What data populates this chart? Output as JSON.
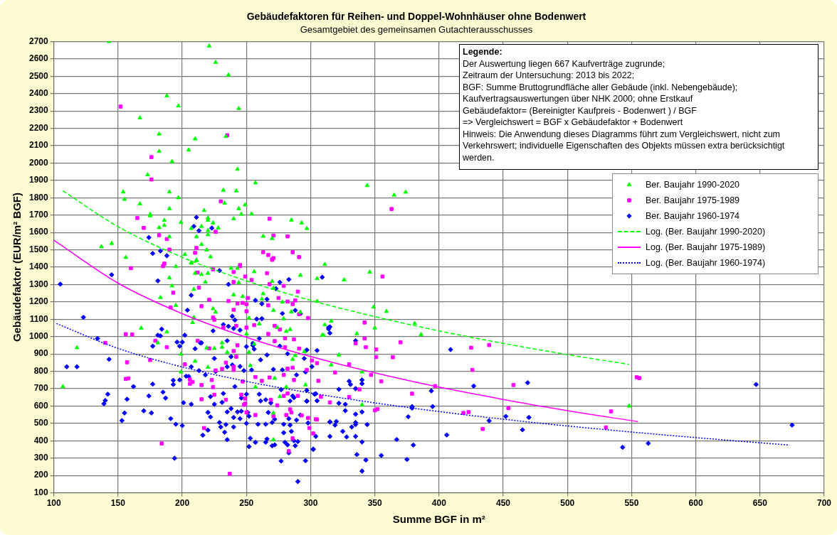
{
  "chart_data": {
    "type": "scatter",
    "title": "Gebäudefaktoren für Reihen- und Doppel-Wohnhäuser ohne Bodenwert",
    "subtitle": "Gesamtgebiet des gemeinsamen Gutachterausschusses",
    "xlabel": "Summe BGF in m²",
    "ylabel": "Gebäudefaktor (EUR/m² BGF)",
    "xlim": [
      100,
      700
    ],
    "xticks": [
      100,
      150,
      200,
      250,
      300,
      350,
      400,
      450,
      500,
      550,
      600,
      650,
      700
    ],
    "ylim": [
      100,
      2700
    ],
    "yticks": [
      100,
      200,
      300,
      400,
      500,
      600,
      700,
      800,
      900,
      1000,
      1100,
      1200,
      1300,
      1400,
      1500,
      1600,
      1700,
      1800,
      1900,
      2000,
      2100,
      2200,
      2300,
      2400,
      2500,
      2600,
      2700
    ],
    "grid": true,
    "legend": "right",
    "annotations": [
      "Legende:",
      "Der Auswertung liegen 667 Kaufverträge zugrunde;",
      "Zeitraum der Untersuchung: 2013 bis 2022;",
      "BGF: Summe Bruttogrundfläche aller Gebäude (inkl. Nebengebäude);",
      "Kaufvertragsauswertungen über NHK 2000; ohne Erstkauf",
      "Gebäudefaktor= (Bereinigter Kaufpreis - Bodenwert ) / BGF",
      "=> Vergleichswert = BGF x Gebäudefaktor + Bodenwert",
      "Hinweis: Die Anwendung dieses Diagramms führt zum Vergleichswert, nicht zum Verkehrswert; individuelle Eigenschaften des Objekts müssen extra berücksichtigt werden."
    ],
    "series": [
      {
        "name": "Ber. Baujahr 1990-2020",
        "color": "#00ff00",
        "marker": "triangle",
        "x": [
          143,
          221,
          226,
          236,
          188,
          197,
          244,
          167,
          182,
          210,
          234,
          182,
          205,
          192,
          243,
          173,
          257,
          154,
          155,
          190,
          197,
          232,
          242,
          167,
          233,
          190,
          217,
          244,
          249,
          175,
          175,
          199,
          186,
          186,
          182,
          207,
          215,
          220,
          220,
          224,
          228,
          220,
          220,
          211,
          190,
          240,
          246,
          254,
          285,
          293,
          297,
          263,
          270,
          137,
          145,
          215,
          219,
          202,
          222,
          156,
          207,
          211,
          311,
          344,
          365,
          374,
          305,
          326,
          346,
          305,
          349,
          359,
          350,
          381,
          386,
          311,
          316,
          310,
          336,
          295,
          322,
          316,
          340,
          296,
          340,
          548,
          195,
          207,
          211,
          210,
          215,
          220,
          218,
          238,
          243,
          244,
          256,
          292,
          190,
          192,
          183,
          195,
          209,
          240,
          247,
          262,
          263,
          270,
          271,
          271,
          278,
          285,
          292,
          224,
          226,
          209,
          208,
          252,
          260,
          279,
          284,
          281,
          274,
          309,
          168,
          188,
          181,
          118,
          219,
          225,
          231,
          231,
          250,
          235,
          256,
          199,
          210,
          220,
          199,
          253,
          288,
          286,
          252,
          272,
          257,
          276,
          281,
          107,
          271,
          271
        ],
        "values": [
          2700,
          2674,
          2580,
          2507,
          2387,
          2329,
          2314,
          2260,
          2167,
          2139,
          2153,
          2067,
          2075,
          2008,
          1964,
          1932,
          1886,
          1833,
          1791,
          1833,
          1800,
          1843,
          1839,
          1765,
          1769,
          1737,
          1727,
          1737,
          1759,
          1705,
          1696,
          1658,
          1670,
          1641,
          1628,
          1623,
          1635,
          1683,
          1670,
          1655,
          1626,
          1611,
          1587,
          1575,
          1575,
          1679,
          1705,
          1706,
          1671,
          1655,
          1623,
          1578,
          1565,
          1518,
          1537,
          1531,
          1499,
          1473,
          1460,
          1456,
          1426,
          1441,
          1416,
          1870,
          1815,
          1832,
          1334,
          1327,
          1372,
          1203,
          1170,
          1145,
          1050,
          1076,
          1012,
          1068,
          1089,
          1008,
          1017,
          913,
          894,
          837,
          796,
          722,
          607,
          600,
          1404,
          1423,
          1438,
          1365,
          1358,
          1365,
          1314,
          1394,
          1394,
          1311,
          1374,
          1353,
          1339,
          1292,
          1225,
          1180,
          1272,
          1241,
          1231,
          1216,
          1247,
          1318,
          1279,
          1151,
          1199,
          1143,
          1141,
          1161,
          1141,
          1110,
          1081,
          1107,
          1073,
          1103,
          1041,
          1030,
          1052,
          1008,
          1049,
          1027,
          964,
          936,
          935,
          932,
          939,
          964,
          1015,
          910,
          957,
          899,
          858,
          823,
          796,
          833,
          891,
          869,
          910,
          760,
          709,
          654,
          709,
          712,
          406,
          560
        ]
      },
      {
        "name": "Ber. Baujahr 1975-1989",
        "color": "#ff00ff",
        "marker": "square",
        "x": [
          152,
          235,
          176,
          176,
          230,
          165,
          170,
          182,
          188,
          190,
          186,
          226,
          211,
          210,
          268,
          271,
          282,
          263,
          267,
          271,
          270,
          286,
          291,
          245,
          160,
          185,
          186,
          212,
          224,
          240,
          245,
          266,
          270,
          193,
          213,
          215,
          221,
          191,
          240,
          249,
          254,
          268,
          279,
          290,
          236,
          240,
          243,
          247,
          250,
          251,
          250,
          267,
          275,
          282,
          286,
          288,
          291,
          298,
          224,
          225,
          232,
          242,
          250,
          256,
          267,
          272,
          276,
          280,
          287,
          156,
          161,
          140,
          179,
          188,
          212,
          221,
          240,
          243,
          242,
          272,
          280,
          291,
          157,
          175,
          156,
          158,
          202,
          206,
          208,
          206,
          215,
          223,
          226,
          231,
          234,
          240,
          240,
          247,
          257,
          262,
          268,
          279,
          282,
          286,
          287,
          297,
          301,
          305,
          306,
          224,
          225,
          215,
          234,
          246,
          249,
          249,
          248,
          250,
          257,
          269,
          274,
          279,
          282,
          284,
          285,
          281,
          290,
          293,
          298,
          304,
          299,
          302,
          315,
          308,
          271,
          286,
          283,
          184,
          237,
          217,
          363,
          356,
          342,
          342,
          335,
          343,
          370,
          351,
          351,
          364,
          330,
          319,
          347,
          355,
          338,
          379,
          397,
          425,
          439,
          426,
          458,
          454,
          419,
          423,
          434,
          330,
          350,
          352,
          305,
          534,
          530,
          554,
          556
        ],
        "values": [
          2325,
          2160,
          2034,
          1905,
          1779,
          1683,
          1626,
          1584,
          1562,
          1501,
          1419,
          1604,
          1511,
          1483,
          1679,
          1582,
          1577,
          1486,
          1470,
          1452,
          1442,
          1486,
          1458,
          1412,
          1394,
          1406,
          1420,
          1369,
          1387,
          1372,
          1406,
          1365,
          1445,
          1253,
          1282,
          1175,
          1212,
          1168,
          1314,
          1346,
          1326,
          1302,
          1292,
          1259,
          1205,
          1154,
          1190,
          1194,
          1186,
          1222,
          1146,
          1180,
          1222,
          1202,
          1187,
          1208,
          1129,
          1107,
          1110,
          1097,
          1052,
          1062,
          1052,
          1066,
          1015,
          1062,
          1041,
          990,
          984,
          1014,
          1012,
          964,
          976,
          939,
          976,
          932,
          917,
          950,
          884,
          974,
          939,
          931,
          852,
          865,
          756,
          759,
          840,
          753,
          738,
          728,
          721,
          750,
          805,
          814,
          850,
          826,
          808,
          741,
          767,
          745,
          764,
          779,
          815,
          821,
          750,
          808,
          862,
          847,
          745,
          709,
          665,
          639,
          636,
          665,
          614,
          643,
          607,
          563,
          548,
          636,
          604,
          658,
          672,
          581,
          563,
          548,
          658,
          546,
          531,
          524,
          473,
          442,
          621,
          653,
          541,
          414,
          340,
          384,
          210,
          473,
          1735,
          1346,
          1081,
          989,
          961,
          939,
          967,
          926,
          882,
          881,
          840,
          793,
          779,
          742,
          696,
          671,
          715,
          936,
          951,
          808,
          721,
          588,
          560,
          565,
          468,
          652,
          575,
          582,
          522,
          569,
          476,
          766,
          761
        ]
      },
      {
        "name": "Ber. Baujahr 1960-1974",
        "color": "#0000ff",
        "marker": "diamond",
        "x": [
          211,
          209,
          213,
          223,
          174,
          177,
          183,
          188,
          105,
          145,
          123,
          181,
          236,
          229,
          273,
          276,
          283,
          309,
          207,
          204,
          257,
          266,
          262,
          278,
          288,
          292,
          239,
          241,
          232,
          236,
          240,
          245,
          224,
          202,
          184,
          181,
          183,
          258,
          262,
          314,
          134,
          177,
          196,
          200,
          198,
          210,
          214,
          215,
          235,
          255,
          255,
          260,
          276,
          282,
          297,
          305,
          143,
          110,
          118,
          225,
          238,
          250,
          256,
          266,
          261,
          226,
          235,
          239,
          245,
          248,
          254,
          271,
          278,
          289,
          295,
          296,
          207,
          213,
          218,
          203,
          205,
          198,
          193,
          193,
          177,
          162,
          142,
          140,
          139,
          157,
          174,
          185,
          187,
          201,
          207,
          222,
          225,
          232,
          231,
          241,
          246,
          250,
          260,
          261,
          265,
          269,
          277,
          286,
          287,
          284,
          297,
          297,
          303,
          155,
          153,
          170,
          176,
          191,
          195,
          200,
          220,
          222,
          229,
          230,
          234,
          235,
          238,
          240,
          243,
          246,
          245,
          251,
          252,
          250,
          259,
          265,
          267,
          270,
          272,
          279,
          283,
          284,
          289,
          292,
          298,
          315,
          216,
          220,
          233,
          235,
          240,
          253,
          252,
          257,
          265,
          266,
          270,
          272,
          279,
          280,
          282,
          283,
          285,
          287,
          288,
          290,
          302,
          304,
          277,
          296,
          290,
          194,
          315,
          314,
          315,
          335,
          301,
          322,
          330,
          331,
          335,
          340,
          340,
          304,
          305,
          297,
          322,
          327,
          327,
          335,
          340,
          315,
          319,
          320,
          332,
          335,
          335,
          344,
          325,
          315,
          328,
          335,
          340,
          302,
          336,
          343,
          340,
          355,
          367,
          380,
          375,
          376,
          379,
          379,
          394,
          395,
          406,
          409,
          427,
          439,
          452,
          469,
          470,
          465,
          543,
          563,
          647,
          675
        ],
        "values": [
          1687,
          1635,
          1610,
          1625,
          1571,
          1479,
          1493,
          1466,
          1302,
          1356,
          1111,
          1321,
          1301,
          1380,
          1276,
          1313,
          1329,
          1342,
          1238,
          1152,
          1209,
          1215,
          1189,
          1133,
          1151,
          1132,
          1117,
          1095,
          1069,
          1059,
          1047,
          1037,
          1033,
          1008,
          1043,
          1008,
          1004,
          1101,
          1103,
          1052,
          989,
          945,
          968,
          968,
          945,
          930,
          964,
          964,
          976,
          961,
          949,
          989,
          945,
          901,
          923,
          920,
          869,
          826,
          826,
          874,
          884,
          942,
          928,
          894,
          866,
          799,
          826,
          837,
          828,
          804,
          808,
          811,
          808,
          779,
          874,
          796,
          826,
          804,
          779,
          772,
          770,
          750,
          748,
          724,
          726,
          712,
          668,
          632,
          613,
          639,
          658,
          680,
          646,
          619,
          610,
          654,
          610,
          672,
          621,
          712,
          646,
          668,
          668,
          629,
          636,
          618,
          694,
          658,
          648,
          629,
          690,
          629,
          668,
          560,
          516,
          572,
          560,
          527,
          495,
          487,
          563,
          537,
          505,
          479,
          493,
          566,
          585,
          534,
          566,
          570,
          527,
          563,
          541,
          500,
          495,
          495,
          563,
          505,
          524,
          495,
          527,
          490,
          519,
          548,
          502,
          508,
          432,
          461,
          449,
          406,
          479,
          414,
          366,
          391,
          391,
          410,
          371,
          376,
          446,
          391,
          376,
          330,
          454,
          400,
          371,
          395,
          352,
          425,
          283,
          285,
          165,
          299,
          1056,
          1044,
          1020,
          976,
          827,
          696,
          743,
          724,
          700,
          750,
          729,
          671,
          630,
          627,
          616,
          610,
          573,
          553,
          566,
          509,
          490,
          511,
          479,
          505,
          493,
          493,
          454,
          425,
          422,
          425,
          393,
          350,
          320,
          289,
          225,
          315,
          407,
          375,
          292,
          538,
          588,
          597,
          687,
          597,
          433,
          925,
          715,
          515,
          540,
          734,
          534,
          463,
          362,
          385,
          724,
          490
        ]
      },
      {
        "name": "Log. (Ber. Baujahr 1990-2020)",
        "type": "line",
        "color": "#00ff00",
        "marker": "none",
        "line_style": "dashed",
        "x": [
          107,
          150,
          200,
          250,
          300,
          350,
          400,
          450,
          500,
          548
        ],
        "values": [
          1840,
          1633,
          1457,
          1321,
          1209,
          1115,
          1033,
          961,
          896,
          840
        ]
      },
      {
        "name": "Log. (Ber. Baujahr 1975-1989)",
        "type": "line",
        "color": "#ff00ff",
        "marker": "none",
        "line_style": "solid",
        "x": [
          100,
          150,
          200,
          250,
          300,
          350,
          400,
          450,
          500,
          555
        ],
        "values": [
          1555,
          1308,
          1132,
          996,
          885,
          791,
          709,
          638,
          573,
          510
        ]
      },
      {
        "name": "Log. (Ber. Baujahr 1960-1974)",
        "type": "line",
        "color": "#0000ff",
        "marker": "none",
        "line_style": "dotted",
        "x": [
          102,
          150,
          200,
          250,
          300,
          350,
          400,
          450,
          500,
          550,
          600,
          650,
          673
        ],
        "values": [
          1075,
          932,
          825,
          742,
          675,
          618,
          568,
          524,
          485,
          450,
          418,
          388,
          375
        ]
      }
    ]
  }
}
